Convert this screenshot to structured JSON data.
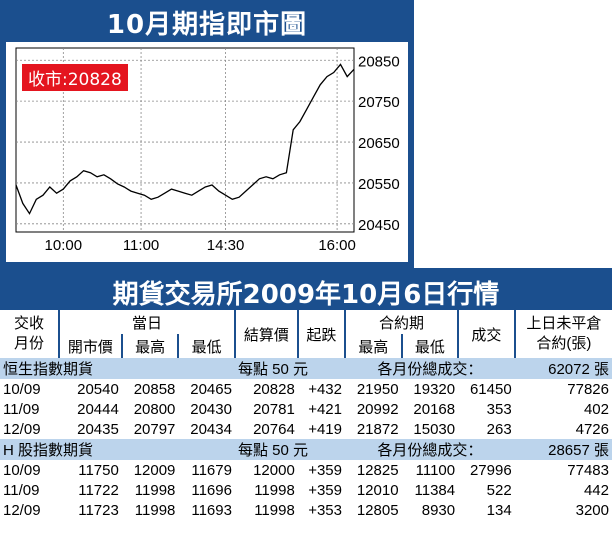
{
  "chart_title": "10月期指即市圖",
  "close_badge": "收市:20828",
  "chart_data": {
    "type": "line",
    "title": "10月期指即市圖",
    "annotation": "收市:20828",
    "x_ticks": [
      "10:00",
      "11:00",
      "14:30",
      "16:00"
    ],
    "y_ticks": [
      20450,
      20550,
      20650,
      20750,
      20850
    ],
    "ylim": [
      20430,
      20880
    ],
    "grid": true,
    "series": [
      {
        "x": [
          0,
          2,
          4,
          6,
          8,
          10,
          12,
          14,
          16,
          18,
          20,
          22,
          24,
          26,
          28,
          30,
          32,
          34,
          36,
          38,
          40,
          42,
          44,
          46,
          48,
          50,
          52,
          54,
          56,
          58,
          60,
          62,
          64,
          66,
          68,
          70,
          72,
          74,
          76,
          78,
          80,
          82,
          84,
          86,
          88,
          90,
          92,
          94,
          96,
          98,
          100
        ],
        "values": [
          20545,
          20500,
          20475,
          20510,
          20520,
          20540,
          20525,
          20535,
          20555,
          20565,
          20580,
          20575,
          20565,
          20570,
          20560,
          20548,
          20540,
          20530,
          20525,
          20520,
          20510,
          20515,
          20525,
          20535,
          20530,
          20525,
          20520,
          20530,
          20540,
          20545,
          20530,
          20520,
          20510,
          20515,
          20530,
          20545,
          20560,
          20565,
          20560,
          20570,
          20575,
          20680,
          20700,
          20730,
          20760,
          20790,
          20810,
          20820,
          20840,
          20810,
          20828
        ]
      }
    ]
  },
  "table_title": "期貨交易所2009年10月6日行情",
  "headers": {
    "col_contract": [
      "交收",
      "月份"
    ],
    "group_today": "當日",
    "open": "開市價",
    "high": "最高",
    "low": "最低",
    "settle": "結算價",
    "change": "起跌",
    "group_contract_period": "合約期",
    "cp_high": "最高",
    "cp_low": "最低",
    "volume": "成交",
    "open_interest": [
      "上日未平倉",
      "合約(張)"
    ]
  },
  "sections": [
    {
      "name": "恒生指數期貨",
      "per_point": "每點 50 元",
      "total_label": "各月份總成交：",
      "open_interest_total": "62072 張",
      "rows": [
        [
          "10/09",
          "20540",
          "20858",
          "20465",
          "20828",
          "+432",
          "21950",
          "19320",
          "61450",
          "77826"
        ],
        [
          "11/09",
          "20444",
          "20800",
          "20430",
          "20781",
          "+421",
          "20992",
          "20168",
          "353",
          "402"
        ],
        [
          "12/09",
          "20435",
          "20797",
          "20434",
          "20764",
          "+419",
          "21872",
          "15030",
          "263",
          "4726"
        ]
      ]
    },
    {
      "name": "H 股指數期貨",
      "per_point": "每點 50 元",
      "total_label": "各月份總成交：",
      "open_interest_total": "28657 張",
      "rows": [
        [
          "10/09",
          "11750",
          "12009",
          "11679",
          "12000",
          "+359",
          "12825",
          "11100",
          "27996",
          "77483"
        ],
        [
          "11/09",
          "11722",
          "11998",
          "11696",
          "11998",
          "+359",
          "12010",
          "11384",
          "522",
          "442"
        ],
        [
          "12/09",
          "11723",
          "11998",
          "11693",
          "11998",
          "+353",
          "12805",
          "8930",
          "134",
          "3200"
        ]
      ]
    }
  ]
}
